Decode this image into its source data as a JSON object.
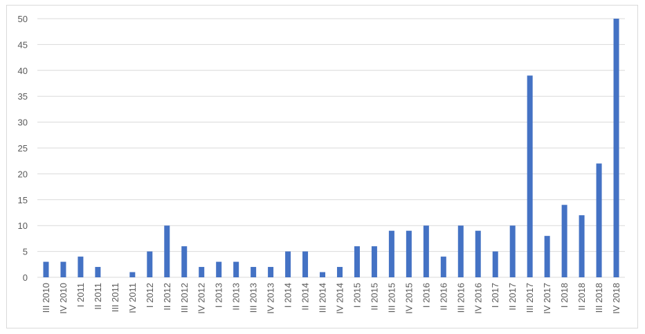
{
  "chart_data": {
    "type": "bar",
    "title": "",
    "xlabel": "",
    "ylabel": "",
    "ylim": [
      0,
      50
    ],
    "yticks": [
      0,
      5,
      10,
      15,
      20,
      25,
      30,
      35,
      40,
      45,
      50
    ],
    "grid": true,
    "legend": "none",
    "bar_color": "#4472C4",
    "categories": [
      "III 2010",
      "IV 2010",
      "I 2011",
      "II 2011",
      "III 2011",
      "IV 2011",
      "I 2012",
      "II 2012",
      "III 2012",
      "IV 2012",
      "I 2013",
      "II 2013",
      "III 2013",
      "IV 2013",
      "I 2014",
      "II 2014",
      "III 2014",
      "IV 2014",
      "I 2015",
      "II 2015",
      "III 2015",
      "IV 2015",
      "I 2016",
      "II 2016",
      "III 2016",
      "IV 2016",
      "I 2017",
      "II 2017",
      "III 2017",
      "IV 2017",
      "I 2018",
      "II 2018",
      "III 2018",
      "IV 2018"
    ],
    "values": [
      3,
      3,
      4,
      2,
      0,
      1,
      5,
      10,
      6,
      2,
      3,
      3,
      2,
      2,
      5,
      5,
      1,
      2,
      6,
      6,
      9,
      9,
      10,
      4,
      10,
      9,
      5,
      10,
      39,
      8,
      14,
      12,
      22,
      50
    ]
  }
}
